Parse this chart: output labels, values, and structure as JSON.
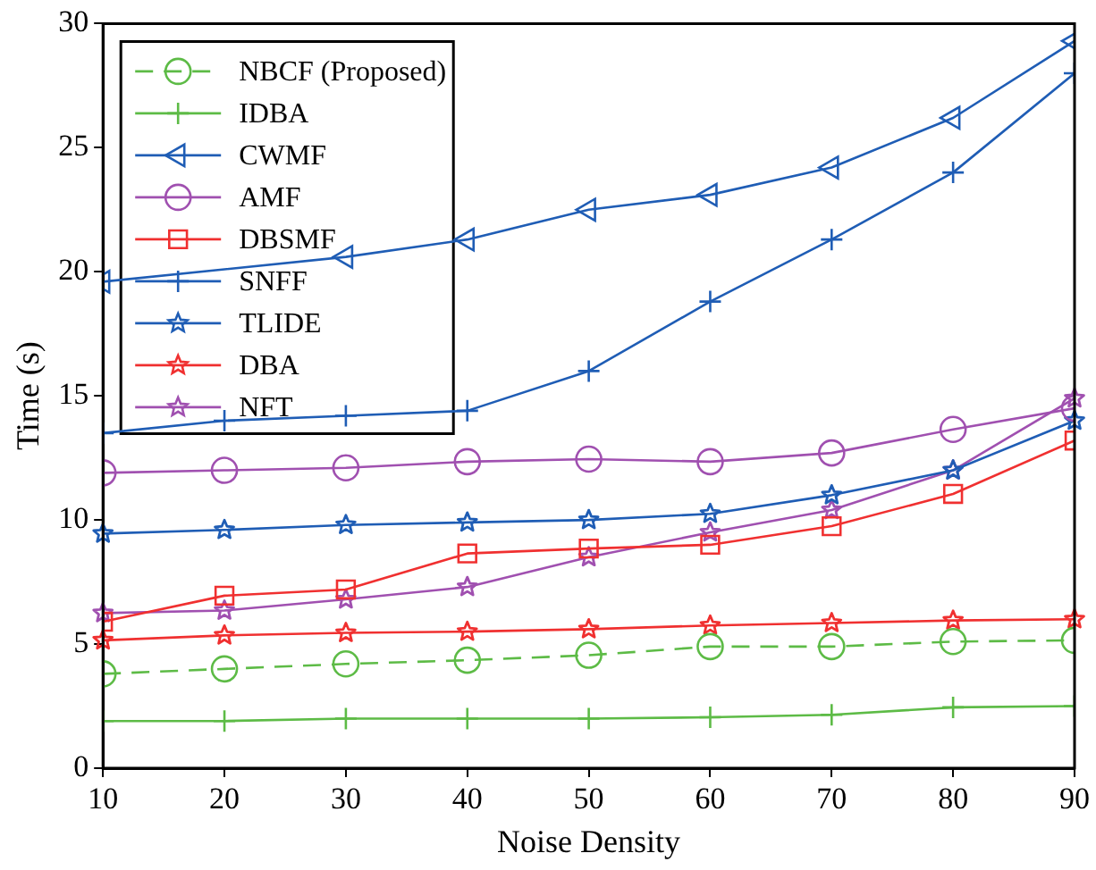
{
  "chart_data": {
    "type": "line",
    "xlabel": "Noise Density",
    "ylabel": "Time (s)",
    "x": [
      10,
      20,
      30,
      40,
      50,
      60,
      70,
      80,
      90
    ],
    "xlim": [
      10,
      90
    ],
    "xticks": [
      10,
      20,
      30,
      40,
      50,
      60,
      70,
      80,
      90
    ],
    "ylim": [
      0,
      30
    ],
    "yticks": [
      0,
      5,
      10,
      15,
      20,
      25,
      30
    ],
    "grid": false,
    "legend": "top left",
    "series": [
      {
        "name": "NBCF (Proposed)",
        "color": "#5dbb46",
        "marker": "circle",
        "line_style": "dashed",
        "values": [
          3.8,
          4.0,
          4.2,
          4.35,
          4.55,
          4.9,
          4.9,
          5.1,
          5.15
        ]
      },
      {
        "name": "IDBA",
        "color": "#5dbb46",
        "marker": "cross",
        "line_style": "solid",
        "values": [
          1.9,
          1.9,
          2.0,
          2.0,
          2.0,
          2.05,
          2.15,
          2.45,
          2.5
        ]
      },
      {
        "name": "CWMF",
        "color": "#1f5db5",
        "marker": "triangle",
        "line_style": "solid",
        "values": [
          19.6,
          null,
          20.6,
          21.3,
          22.5,
          23.1,
          24.2,
          26.2,
          29.3
        ]
      },
      {
        "name": "AMF",
        "color": "#a050b0",
        "marker": "circle",
        "line_style": "solid",
        "values": [
          11.9,
          12.0,
          12.1,
          12.35,
          12.45,
          12.35,
          12.7,
          13.65,
          14.5
        ]
      },
      {
        "name": "DBSMF",
        "color": "#f03030",
        "marker": "square",
        "line_style": "solid",
        "values": [
          5.9,
          6.95,
          7.2,
          8.65,
          8.85,
          9.0,
          9.75,
          11.05,
          13.2
        ]
      },
      {
        "name": "SNFF",
        "color": "#1f5db5",
        "marker": "cross",
        "line_style": "solid",
        "values": [
          13.5,
          14.0,
          14.2,
          14.4,
          16.0,
          18.8,
          21.3,
          24.0,
          28.0
        ]
      },
      {
        "name": "TLIDE",
        "color": "#1f5db5",
        "marker": "star",
        "line_style": "solid",
        "values": [
          9.45,
          9.6,
          9.8,
          9.9,
          10.0,
          10.25,
          11.0,
          12.0,
          14.0
        ]
      },
      {
        "name": "DBA",
        "color": "#f03030",
        "marker": "star",
        "line_style": "solid",
        "values": [
          5.15,
          5.35,
          5.45,
          5.5,
          5.6,
          5.75,
          5.85,
          5.95,
          6.0
        ]
      },
      {
        "name": "NFT",
        "color": "#a050b0",
        "marker": "star",
        "line_style": "solid",
        "values": [
          6.25,
          6.35,
          6.8,
          7.3,
          8.5,
          9.5,
          10.4,
          12.0,
          14.9
        ]
      }
    ]
  }
}
